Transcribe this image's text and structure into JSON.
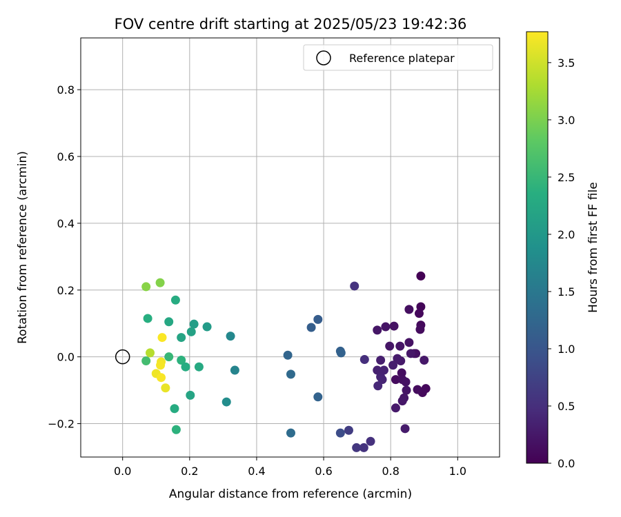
{
  "chart_data": {
    "type": "scatter",
    "title": "FOV centre drift starting at 2025/05/23 19:42:36",
    "xlabel": "Angular distance from reference (arcmin)",
    "ylabel": "Rotation from reference (arcmin)",
    "xlim": [
      -0.125,
      1.125
    ],
    "ylim": [
      -0.3,
      0.955
    ],
    "xticks": [
      0.0,
      0.2,
      0.4,
      0.6,
      0.8,
      1.0
    ],
    "xtick_labels": [
      "0.0",
      "0.2",
      "0.4",
      "0.6",
      "0.8",
      "1.0"
    ],
    "yticks": [
      -0.2,
      0.0,
      0.2,
      0.4,
      0.6,
      0.8
    ],
    "ytick_labels": [
      "−0.2",
      "0.0",
      "0.2",
      "0.4",
      "0.6",
      "0.8"
    ],
    "grid": true,
    "legend": {
      "placement": "top-right",
      "entries": [
        "Reference platepar"
      ]
    },
    "reference_point": {
      "x": 0.0,
      "y": 0.0
    },
    "colormap": "viridis",
    "colorbar": {
      "label": "Hours from first FF file",
      "range": [
        0.0,
        3.77
      ],
      "ticks": [
        0.0,
        0.5,
        1.0,
        1.5,
        2.0,
        2.5,
        3.0,
        3.5
      ],
      "tick_labels": [
        "0.0",
        "0.5",
        "1.0",
        "1.5",
        "2.0",
        "2.5",
        "3.0",
        "3.5"
      ]
    },
    "points": [
      {
        "x": 0.89,
        "y": 0.242,
        "c": 0.0
      },
      {
        "x": 0.89,
        "y": 0.15,
        "c": 0.05
      },
      {
        "x": 0.885,
        "y": 0.13,
        "c": 0.08
      },
      {
        "x": 0.89,
        "y": 0.095,
        "c": 0.1
      },
      {
        "x": 0.888,
        "y": 0.082,
        "c": 0.12
      },
      {
        "x": 0.855,
        "y": 0.142,
        "c": 0.15
      },
      {
        "x": 0.81,
        "y": 0.092,
        "c": 0.18
      },
      {
        "x": 0.785,
        "y": 0.09,
        "c": 0.2
      },
      {
        "x": 0.76,
        "y": 0.08,
        "c": 0.22
      },
      {
        "x": 0.9,
        "y": -0.01,
        "c": 0.25
      },
      {
        "x": 0.905,
        "y": -0.095,
        "c": 0.08
      },
      {
        "x": 0.895,
        "y": -0.107,
        "c": 0.1
      },
      {
        "x": 0.88,
        "y": -0.098,
        "c": 0.12
      },
      {
        "x": 0.87,
        "y": 0.01,
        "c": 0.14
      },
      {
        "x": 0.875,
        "y": 0.01,
        "c": 0.16
      },
      {
        "x": 0.855,
        "y": 0.043,
        "c": 0.18
      },
      {
        "x": 0.828,
        "y": 0.032,
        "c": 0.2
      },
      {
        "x": 0.797,
        "y": 0.032,
        "c": 0.22
      },
      {
        "x": 0.86,
        "y": 0.01,
        "c": 0.24
      },
      {
        "x": 0.83,
        "y": -0.012,
        "c": 0.26
      },
      {
        "x": 0.82,
        "y": -0.005,
        "c": 0.28
      },
      {
        "x": 0.807,
        "y": -0.025,
        "c": 0.3
      },
      {
        "x": 0.77,
        "y": -0.01,
        "c": 0.32
      },
      {
        "x": 0.76,
        "y": -0.04,
        "c": 0.34
      },
      {
        "x": 0.78,
        "y": -0.04,
        "c": 0.36
      },
      {
        "x": 0.77,
        "y": -0.06,
        "c": 0.38
      },
      {
        "x": 0.775,
        "y": -0.068,
        "c": 0.4
      },
      {
        "x": 0.762,
        "y": -0.087,
        "c": 0.42
      },
      {
        "x": 0.815,
        "y": -0.068,
        "c": 0.12
      },
      {
        "x": 0.833,
        "y": -0.048,
        "c": 0.14
      },
      {
        "x": 0.835,
        "y": -0.068,
        "c": 0.16
      },
      {
        "x": 0.845,
        "y": -0.075,
        "c": 0.18
      },
      {
        "x": 0.847,
        "y": -0.1,
        "c": 0.2
      },
      {
        "x": 0.84,
        "y": -0.123,
        "c": 0.22
      },
      {
        "x": 0.835,
        "y": -0.132,
        "c": 0.24
      },
      {
        "x": 0.815,
        "y": -0.153,
        "c": 0.26
      },
      {
        "x": 0.843,
        "y": -0.215,
        "c": 0.28
      },
      {
        "x": 0.692,
        "y": 0.212,
        "c": 0.55
      },
      {
        "x": 0.722,
        "y": -0.008,
        "c": 0.5
      },
      {
        "x": 0.74,
        "y": -0.253,
        "c": 0.52
      },
      {
        "x": 0.72,
        "y": -0.272,
        "c": 0.55
      },
      {
        "x": 0.698,
        "y": -0.272,
        "c": 0.6
      },
      {
        "x": 0.675,
        "y": -0.22,
        "c": 0.68
      },
      {
        "x": 0.65,
        "y": -0.228,
        "c": 0.88
      },
      {
        "x": 0.583,
        "y": 0.112,
        "c": 1.1
      },
      {
        "x": 0.563,
        "y": 0.088,
        "c": 1.12
      },
      {
        "x": 0.65,
        "y": 0.017,
        "c": 1.15
      },
      {
        "x": 0.652,
        "y": 0.012,
        "c": 1.18
      },
      {
        "x": 0.493,
        "y": 0.005,
        "c": 1.22
      },
      {
        "x": 0.502,
        "y": -0.052,
        "c": 1.3
      },
      {
        "x": 0.583,
        "y": -0.12,
        "c": 1.2
      },
      {
        "x": 0.502,
        "y": -0.228,
        "c": 1.32
      },
      {
        "x": 0.322,
        "y": 0.062,
        "c": 1.75
      },
      {
        "x": 0.335,
        "y": -0.04,
        "c": 1.68
      },
      {
        "x": 0.31,
        "y": -0.135,
        "c": 1.82
      },
      {
        "x": 0.252,
        "y": 0.09,
        "c": 2.05
      },
      {
        "x": 0.213,
        "y": 0.098,
        "c": 2.1
      },
      {
        "x": 0.205,
        "y": 0.075,
        "c": 2.15
      },
      {
        "x": 0.175,
        "y": 0.058,
        "c": 2.2
      },
      {
        "x": 0.138,
        "y": 0.105,
        "c": 2.25
      },
      {
        "x": 0.158,
        "y": 0.17,
        "c": 2.3
      },
      {
        "x": 0.075,
        "y": 0.115,
        "c": 2.35
      },
      {
        "x": 0.175,
        "y": -0.01,
        "c": 2.4
      },
      {
        "x": 0.188,
        "y": -0.03,
        "c": 2.32
      },
      {
        "x": 0.228,
        "y": -0.03,
        "c": 2.28
      },
      {
        "x": 0.202,
        "y": -0.115,
        "c": 2.2
      },
      {
        "x": 0.155,
        "y": -0.155,
        "c": 2.3
      },
      {
        "x": 0.16,
        "y": -0.218,
        "c": 2.4
      },
      {
        "x": 0.138,
        "y": 0.0,
        "c": 2.5
      },
      {
        "x": 0.07,
        "y": -0.012,
        "c": 2.6
      },
      {
        "x": 0.112,
        "y": 0.222,
        "c": 3.05
      },
      {
        "x": 0.07,
        "y": 0.21,
        "c": 3.08
      },
      {
        "x": 0.082,
        "y": 0.012,
        "c": 3.35
      },
      {
        "x": 0.118,
        "y": 0.058,
        "c": 3.75
      },
      {
        "x": 0.115,
        "y": -0.015,
        "c": 3.7
      },
      {
        "x": 0.113,
        "y": -0.025,
        "c": 3.72
      },
      {
        "x": 0.1,
        "y": -0.05,
        "c": 3.68
      },
      {
        "x": 0.115,
        "y": -0.062,
        "c": 3.74
      },
      {
        "x": 0.128,
        "y": -0.093,
        "c": 3.65
      }
    ]
  }
}
